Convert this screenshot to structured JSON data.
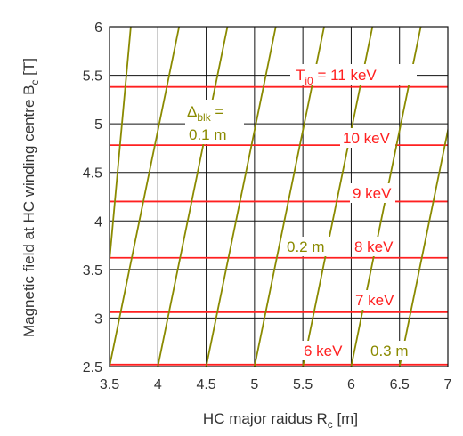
{
  "chart_data": {
    "type": "line",
    "xlabel": "HC major raidus R",
    "xlabel_sub": "c",
    "xlabel_unit": " [m]",
    "ylabel": "Magnetic field at HC winding centre B",
    "ylabel_sub": "c",
    "ylabel_unit": " [T]",
    "xlim": [
      3.5,
      7
    ],
    "ylim": [
      2.5,
      6
    ],
    "xticks": [
      "3.5",
      "4",
      "4.5",
      "5",
      "5.5",
      "6",
      "6.5",
      "7"
    ],
    "xtick_values": [
      3.5,
      4,
      4.5,
      5,
      5.5,
      6,
      6.5,
      7
    ],
    "yticks": [
      "2.5",
      "3",
      "3.5",
      "4",
      "4.5",
      "5",
      "5.5",
      "6"
    ],
    "ytick_values": [
      2.5,
      3,
      3.5,
      4,
      4.5,
      5,
      5.5,
      6
    ],
    "grid": true,
    "colors": {
      "temperature": "#ff2020",
      "blanket": "#8a8a00",
      "grid": "#111111"
    },
    "temperature_contours": [
      {
        "label": "6 keV",
        "y": 2.52
      },
      {
        "label": "7 keV",
        "y": 3.06
      },
      {
        "label": "8 keV",
        "y": 3.62
      },
      {
        "label": "9 keV",
        "y": 4.2
      },
      {
        "label": "10 keV",
        "y": 4.78
      },
      {
        "label": "11 keV",
        "y": 5.38
      }
    ],
    "blanket_contours": [
      {
        "x0": 3.4,
        "x1": 3.72
      },
      {
        "x0": 3.5,
        "x1": 4.22
      },
      {
        "x0": 4.0,
        "x1": 4.72
      },
      {
        "x0": 4.5,
        "x1": 5.22
      },
      {
        "x0": 5.0,
        "x1": 5.72
      },
      {
        "x0": 5.5,
        "x1": 6.22
      },
      {
        "x0": 6.0,
        "x1": 6.72
      },
      {
        "x0": 6.5,
        "x1": 7.22
      }
    ],
    "annotations": {
      "ti_symbol": "T",
      "ti_sub": "i0",
      "ti_rest": " = 11 keV",
      "t10": "10 keV",
      "t9": "9 keV",
      "t8": "8 keV",
      "t7": "7 keV",
      "t6": "6 keV",
      "delta_symbol": "Δ",
      "delta_sub": "blk",
      "delta_eq": " =",
      "b01": "0.1 m",
      "b02": "0.2 m",
      "b03": "0.3 m"
    }
  }
}
